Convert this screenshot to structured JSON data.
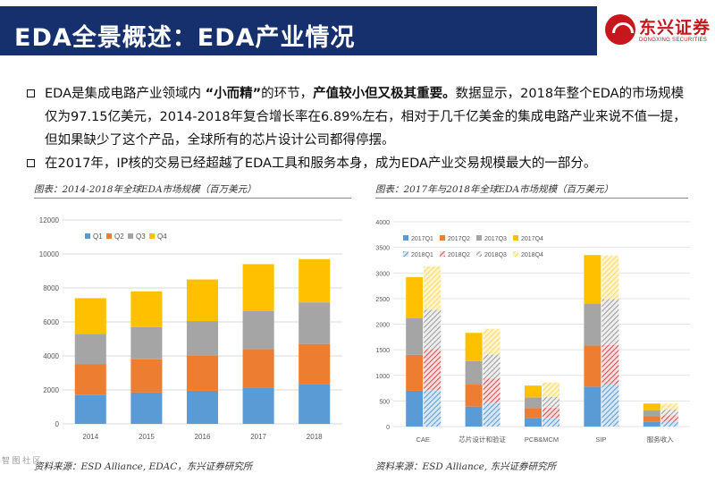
{
  "header": {
    "title": "EDA全景概述：EDA产业情况",
    "logo_cn": "东兴证券",
    "logo_en": "DONGXING SECURITIES"
  },
  "bullets": [
    {
      "seg1": "EDA是集成电路产业领域内 ",
      "seg2": "“小而精”",
      "seg3": "的环节，",
      "seg4": "产值较小但又极其重要。",
      "seg5": "数据显示，2018年整个EDA的市场规模仅为97.15亿美元，2014-2018年复合增长率在6.89%左右，相对于几千亿美金的集成电路产业来说不值一提，但如果缺少了这个产品，全球所有的芯片设计公司都得停摆。"
    },
    {
      "text": "在2017年，IP核的交易已经超越了EDA工具和服务本身，成为EDA产业交易规模最大的一部分。"
    }
  ],
  "left_caption": "图表：2014-2018年全球EDA市场规模（百万美元）",
  "right_caption": "图表：2017年与2018年全球EDA市场规模（百万美元）",
  "left_source": "资料来源：ESD Alliance, EDAC，东兴证券研究所",
  "right_source": "资料来源：ESD Alliance, 东兴证券研究所",
  "watermark": "智 图 社 区",
  "colors": {
    "title_bar": "#16306e",
    "brand_red": "#c8161d",
    "q1": "#5b9bd5",
    "q2": "#ed7d31",
    "q3": "#a5a5a5",
    "q4": "#ffc000"
  },
  "chart_data": [
    {
      "type": "bar",
      "stacked": true,
      "title": "",
      "categories": [
        "2014",
        "2015",
        "2016",
        "2017",
        "2018"
      ],
      "series": [
        {
          "name": "Q1",
          "values": [
            1700,
            1850,
            1950,
            2150,
            2350
          ]
        },
        {
          "name": "Q2",
          "values": [
            1800,
            1950,
            2050,
            2250,
            2350
          ]
        },
        {
          "name": "Q3",
          "values": [
            1800,
            1900,
            2050,
            2250,
            2450
          ]
        },
        {
          "name": "Q4",
          "values": [
            2100,
            2100,
            2450,
            2750,
            2550
          ]
        }
      ],
      "ylim": [
        0,
        12000
      ],
      "yticks": [
        "0",
        "2000",
        "4000",
        "6000",
        "8000",
        "10000",
        "12000"
      ],
      "grid": true,
      "legend": "top-left"
    },
    {
      "type": "bar",
      "stacked": true,
      "grouped": true,
      "title": "",
      "categories": [
        "CAE",
        "芯片设计和验证",
        "PCB&MCM",
        "SIP",
        "服务收入"
      ],
      "groups": [
        "2017",
        "2018"
      ],
      "series": [
        {
          "name": "2017Q1",
          "group": "2017",
          "values": [
            700,
            390,
            170,
            780,
            90
          ]
        },
        {
          "name": "2017Q2",
          "group": "2017",
          "values": [
            700,
            430,
            190,
            800,
            110
          ]
        },
        {
          "name": "2017Q3",
          "group": "2017",
          "values": [
            720,
            460,
            210,
            820,
            120
          ]
        },
        {
          "name": "2017Q4",
          "group": "2017",
          "values": [
            800,
            550,
            230,
            950,
            130
          ]
        },
        {
          "name": "2018Q1",
          "group": "2018",
          "values": [
            710,
            460,
            170,
            820,
            90
          ]
        },
        {
          "name": "2018Q2",
          "group": "2018",
          "values": [
            800,
            480,
            200,
            770,
            130
          ]
        },
        {
          "name": "2018Q3",
          "group": "2018",
          "values": [
            770,
            470,
            210,
            900,
            110
          ]
        },
        {
          "name": "2018Q4",
          "group": "2018",
          "values": [
            850,
            500,
            280,
            850,
            120
          ]
        }
      ],
      "ylim": [
        0,
        4000
      ],
      "yticks": [
        "0",
        "500",
        "1000",
        "1500",
        "2000",
        "2500",
        "3000",
        "3500",
        "4000"
      ],
      "grid": true,
      "legend": "top-left"
    }
  ]
}
